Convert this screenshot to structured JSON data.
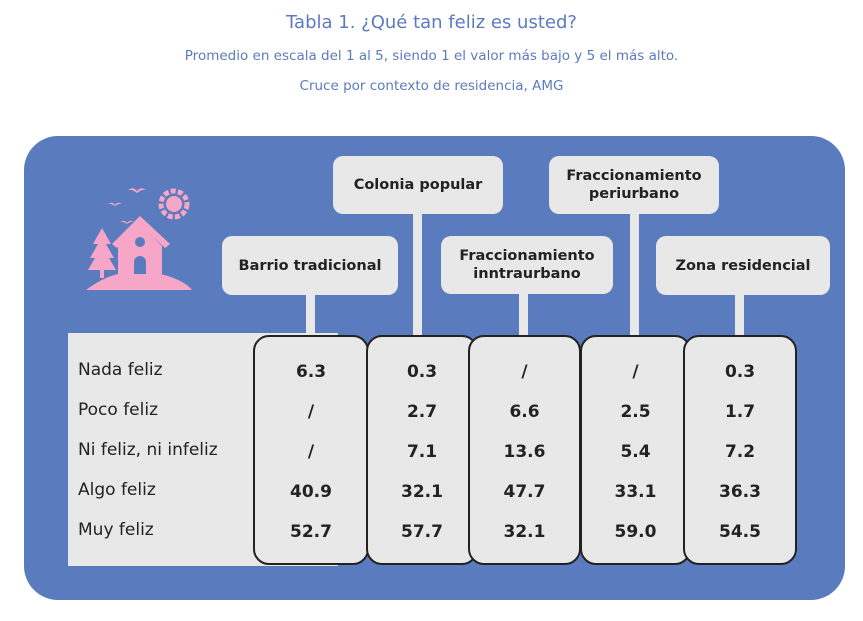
{
  "title": "Tabla 1. ¿Qué tan feliz es usted?",
  "subtitle": "Promedio en escala del 1 al 5, siendo 1 el valor más bajo y 5 el más alto.",
  "subtitle2": "Cruce por contexto de residencia, AMG",
  "colors": {
    "title": "#5b7bbf",
    "panel": "#5b7bbf",
    "box": "#e8e8e8",
    "icon": "#f6a6c6"
  },
  "icon": "house-with-sun-birds-tree-icon",
  "chart_data": {
    "type": "table",
    "title": "Tabla 1. ¿Qué tan feliz es usted?",
    "rows": [
      "Nada feliz",
      "Poco feliz",
      "Ni feliz, ni infeliz",
      "Algo feliz",
      "Muy feliz"
    ],
    "columns": [
      {
        "name": "Barrio tradicional",
        "lines": [
          "Barrio tradicional"
        ],
        "values": [
          "6.3",
          "/",
          "/",
          "40.9",
          "52.7"
        ]
      },
      {
        "name": "Colonia popular",
        "lines": [
          "Colonia popular"
        ],
        "values": [
          "0.3",
          "2.7",
          "7.1",
          "32.1",
          "57.7"
        ]
      },
      {
        "name": "Fraccionamiento inntraurbano",
        "lines": [
          "Fraccionamiento",
          "inntraurbano"
        ],
        "values": [
          "/",
          "6.6",
          "13.6",
          "47.7",
          "32.1"
        ]
      },
      {
        "name": "Fraccionamiento periurbano",
        "lines": [
          "Fraccionamiento",
          "periurbano"
        ],
        "values": [
          "/",
          "2.5",
          "5.4",
          "33.1",
          "59.0"
        ]
      },
      {
        "name": "Zona residencial",
        "lines": [
          "Zona residencial"
        ],
        "values": [
          "0.3",
          "1.7",
          "7.2",
          "36.3",
          "54.5"
        ]
      }
    ]
  }
}
